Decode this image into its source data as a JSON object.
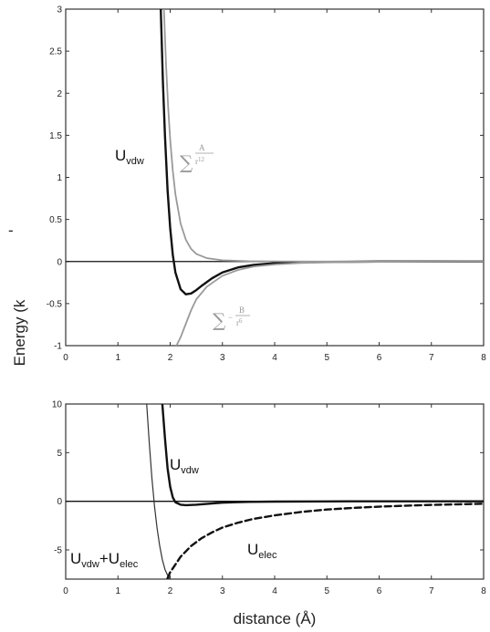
{
  "chart_data": [
    {
      "type": "line",
      "xlim": [
        0,
        8
      ],
      "ylim": [
        -1,
        3
      ],
      "x_ticks": [
        "0",
        "1",
        "2",
        "3",
        "4",
        "5",
        "6",
        "7",
        "8"
      ],
      "y_ticks": [
        "-1",
        "-0.5",
        "0",
        "0.5",
        "1",
        "1.5",
        "2",
        "2.5",
        "3"
      ],
      "grid": false,
      "series": [
        {
          "name": "Uvdw",
          "color": "#111111",
          "x": [
            1.82,
            1.86,
            1.9,
            1.95,
            2.0,
            2.05,
            2.1,
            2.2,
            2.3,
            2.4,
            2.5,
            2.6,
            2.8,
            3.0,
            3.3,
            3.6,
            4.0,
            4.5,
            5.0,
            6.0,
            7.0,
            8.0
          ],
          "y": [
            3.0,
            2.15,
            1.5,
            0.85,
            0.4,
            0.08,
            -0.13,
            -0.33,
            -0.39,
            -0.38,
            -0.34,
            -0.29,
            -0.2,
            -0.13,
            -0.07,
            -0.04,
            -0.02,
            -0.01,
            -0.005,
            0.0,
            0.0,
            0.0
          ]
        },
        {
          "name": "repulsive",
          "color": "#9a9a9a",
          "x": [
            1.88,
            1.92,
            1.96,
            2.0,
            2.05,
            2.1,
            2.2,
            2.3,
            2.4,
            2.5,
            2.7,
            3.0,
            3.5,
            4.0,
            5.0,
            6.0,
            8.0
          ],
          "y": [
            3.0,
            2.35,
            1.85,
            1.45,
            1.08,
            0.8,
            0.45,
            0.26,
            0.15,
            0.09,
            0.04,
            0.015,
            0.004,
            0.001,
            0.0,
            0.0,
            0.0
          ]
        },
        {
          "name": "attractive",
          "color": "#9a9a9a",
          "x": [
            2.12,
            2.2,
            2.3,
            2.4,
            2.5,
            2.7,
            3.0,
            3.3,
            3.6,
            4.0,
            4.5,
            5.0,
            6.0,
            7.0,
            8.0
          ],
          "y": [
            -1.0,
            -0.9,
            -0.74,
            -0.58,
            -0.45,
            -0.3,
            -0.17,
            -0.1,
            -0.06,
            -0.035,
            -0.018,
            -0.01,
            -0.004,
            -0.001,
            0.0
          ]
        }
      ],
      "annotations": {
        "uvdw_main": "U",
        "uvdw_sub": "vdw",
        "sum_symbol": "∑",
        "repulsive_num": "A",
        "repulsive_den": "r",
        "repulsive_exp": "12",
        "attractive_prefix": "−",
        "attractive_num": "B",
        "attractive_den": "r",
        "attractive_exp": "6"
      }
    },
    {
      "type": "line",
      "xlim": [
        0,
        8
      ],
      "ylim": [
        -8,
        10
      ],
      "x_ticks": [
        "0",
        "1",
        "2",
        "3",
        "4",
        "5",
        "6",
        "7",
        "8"
      ],
      "y_ticks": [
        "-5",
        "0",
        "5",
        "10"
      ],
      "grid": false,
      "xlabel": "distance (Å)",
      "series": [
        {
          "name": "Uvdw",
          "color": "#111111",
          "x": [
            1.85,
            1.9,
            1.95,
            2.0,
            2.05,
            2.1,
            2.2,
            2.3,
            2.5,
            2.8,
            3.0,
            3.5,
            4.0,
            5.0,
            6.0,
            8.0
          ],
          "y": [
            10.0,
            6.5,
            3.4,
            1.5,
            0.4,
            -0.1,
            -0.35,
            -0.4,
            -0.35,
            -0.22,
            -0.14,
            -0.06,
            -0.03,
            -0.01,
            0.0,
            0.0
          ]
        },
        {
          "name": "Uvdw+Uelec",
          "color": "#333333",
          "x": [
            1.55,
            1.6,
            1.65,
            1.7,
            1.75,
            1.8,
            1.85,
            1.9,
            1.95,
            2.0
          ],
          "y": [
            10.0,
            6.0,
            2.4,
            -0.5,
            -2.8,
            -4.6,
            -6.0,
            -7.0,
            -7.6,
            -8.0
          ]
        },
        {
          "name": "Uelec",
          "color": "#111111",
          "dashed": true,
          "x": [
            1.95,
            2.0,
            2.2,
            2.4,
            2.6,
            2.8,
            3.0,
            3.3,
            3.6,
            4.0,
            4.5,
            5.0,
            5.5,
            6.0,
            7.0,
            8.0
          ],
          "y": [
            -7.9,
            -7.3,
            -5.7,
            -4.6,
            -3.8,
            -3.2,
            -2.7,
            -2.2,
            -1.8,
            -1.45,
            -1.1,
            -0.85,
            -0.68,
            -0.55,
            -0.37,
            -0.25
          ]
        }
      ],
      "annotations": {
        "uvdw_main": "U",
        "uvdw_sub": "vdw",
        "sum_main_a": "U",
        "sum_sub_a": "vdw",
        "sum_plus": "+U",
        "sum_sub_b": "elec",
        "uelec_main": "U",
        "uelec_sub": "elec"
      }
    }
  ],
  "shared_ylabel": "Energy (k",
  "ylabel_fragment": "-"
}
